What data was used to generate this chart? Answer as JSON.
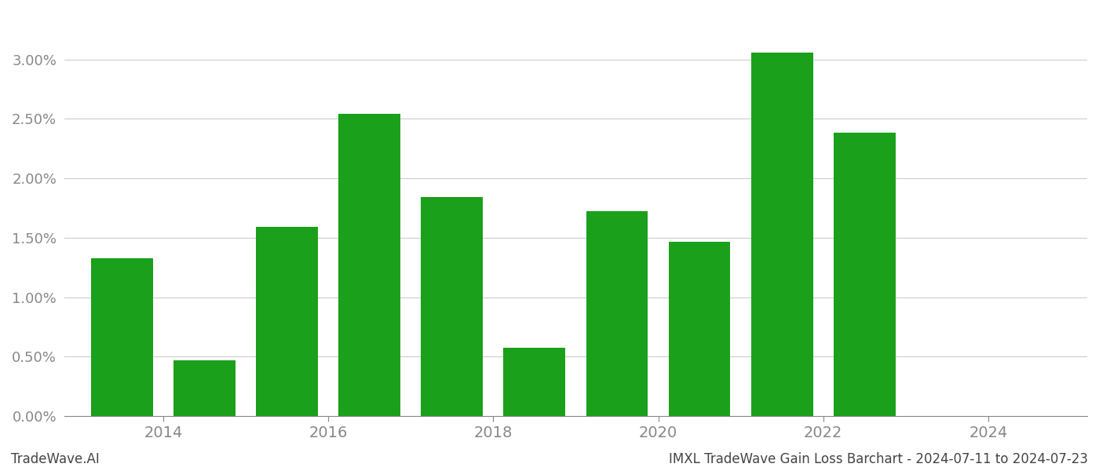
{
  "years": [
    2013.5,
    2014.5,
    2015.5,
    2016.5,
    2017.5,
    2018.5,
    2019.5,
    2020.5,
    2021.5,
    2022.5,
    2023.5
  ],
  "values": [
    0.01325,
    0.00468,
    0.01595,
    0.02545,
    0.01845,
    0.00575,
    0.01725,
    0.01465,
    0.0306,
    0.02385,
    0.0
  ],
  "bar_color": "#1aa01a",
  "bg_color": "#ffffff",
  "grid_color": "#cccccc",
  "axis_label_color": "#888888",
  "footer_left": "TradeWave.AI",
  "footer_right": "IMXL TradeWave Gain Loss Barchart - 2024-07-11 to 2024-07-23",
  "footer_color": "#444444",
  "xlim": [
    2012.8,
    2025.2
  ],
  "ylim": [
    0.0,
    0.034
  ],
  "yticks": [
    0.0,
    0.005,
    0.01,
    0.015,
    0.02,
    0.025,
    0.03
  ],
  "xtick_positions": [
    2014,
    2016,
    2018,
    2020,
    2022,
    2024
  ],
  "xtick_labels": [
    "2014",
    "2016",
    "2018",
    "2020",
    "2022",
    "2024"
  ],
  "bar_width": 0.75,
  "tick_fontsize": 14,
  "ytick_fontsize": 13,
  "footer_fontsize": 12
}
